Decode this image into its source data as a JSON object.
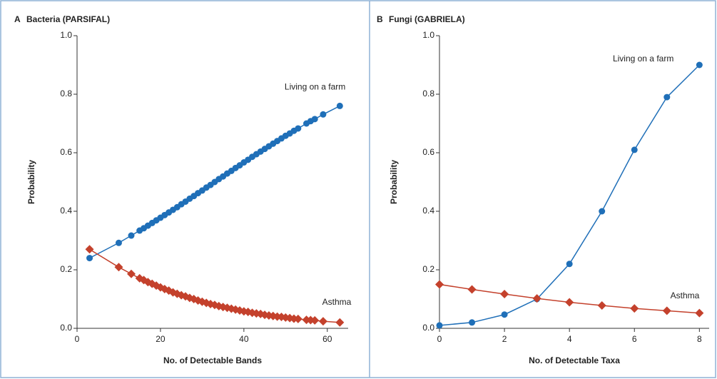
{
  "chart_data": [
    {
      "type": "line",
      "panel": "A",
      "title": "Bacteria (PARSIFAL)",
      "x_label": "No. of Detectable Bands",
      "y_label": "Probability",
      "x": [
        3,
        10,
        13,
        15,
        16,
        17,
        18,
        19,
        20,
        21,
        22,
        23,
        24,
        25,
        26,
        27,
        28,
        29,
        30,
        31,
        32,
        33,
        34,
        35,
        36,
        37,
        38,
        39,
        40,
        41,
        42,
        43,
        44,
        45,
        46,
        47,
        48,
        49,
        50,
        51,
        52,
        53,
        55,
        56,
        57,
        59,
        63
      ],
      "series": [
        {
          "name": "Living on a farm",
          "color": "#1f6fb8",
          "marker": "circle",
          "values": [
            0.24,
            0.292,
            0.317,
            0.334,
            0.342,
            0.351,
            0.36,
            0.369,
            0.378,
            0.387,
            0.396,
            0.405,
            0.414,
            0.424,
            0.433,
            0.443,
            0.452,
            0.462,
            0.471,
            0.481,
            0.49,
            0.5,
            0.51,
            0.519,
            0.529,
            0.538,
            0.548,
            0.557,
            0.567,
            0.576,
            0.586,
            0.595,
            0.604,
            0.613,
            0.622,
            0.631,
            0.64,
            0.649,
            0.658,
            0.666,
            0.675,
            0.683,
            0.7,
            0.708,
            0.715,
            0.731,
            0.76
          ]
        },
        {
          "name": "Asthma",
          "color": "#c4412c",
          "marker": "diamond",
          "values": [
            0.27,
            0.209,
            0.186,
            0.171,
            0.165,
            0.158,
            0.152,
            0.146,
            0.14,
            0.134,
            0.129,
            0.123,
            0.118,
            0.113,
            0.109,
            0.104,
            0.1,
            0.095,
            0.091,
            0.087,
            0.083,
            0.08,
            0.076,
            0.073,
            0.07,
            0.067,
            0.064,
            0.061,
            0.058,
            0.056,
            0.053,
            0.051,
            0.049,
            0.046,
            0.044,
            0.042,
            0.04,
            0.039,
            0.037,
            0.035,
            0.033,
            0.032,
            0.029,
            0.028,
            0.027,
            0.024,
            0.02
          ]
        }
      ],
      "xlim": [
        0,
        65
      ],
      "xticks": [
        0,
        20,
        40,
        60
      ],
      "ylim": [
        0,
        1
      ],
      "yticks": [
        {
          "value": 0,
          "label": "0.0"
        },
        0.2,
        0.4,
        0.6,
        0.8,
        {
          "value": 1,
          "label": "1.0"
        }
      ]
    },
    {
      "type": "line",
      "panel": "B",
      "title": "Fungi (GABRIELA)",
      "x_label": "No. of Detectable Taxa",
      "y_label": "Probability",
      "x": [
        0,
        1,
        2,
        3,
        4,
        5,
        6,
        7,
        8
      ],
      "series": [
        {
          "name": "Living on a farm",
          "color": "#1f6fb8",
          "marker": "circle",
          "values": [
            0.01,
            0.02,
            0.047,
            0.1,
            0.22,
            0.4,
            0.61,
            0.79,
            0.9
          ]
        },
        {
          "name": "Asthma",
          "color": "#c4412c",
          "marker": "diamond",
          "values": [
            0.15,
            0.133,
            0.117,
            0.102,
            0.089,
            0.078,
            0.068,
            0.06,
            0.052
          ]
        }
      ],
      "xlim": [
        0,
        8.3
      ],
      "xticks": [
        0,
        2,
        4,
        6,
        8
      ],
      "ylim": [
        0,
        1
      ],
      "yticks": [
        {
          "value": 0,
          "label": "0.0"
        },
        0.2,
        0.4,
        0.6,
        0.8,
        {
          "value": 1,
          "label": "1.0"
        }
      ]
    }
  ]
}
